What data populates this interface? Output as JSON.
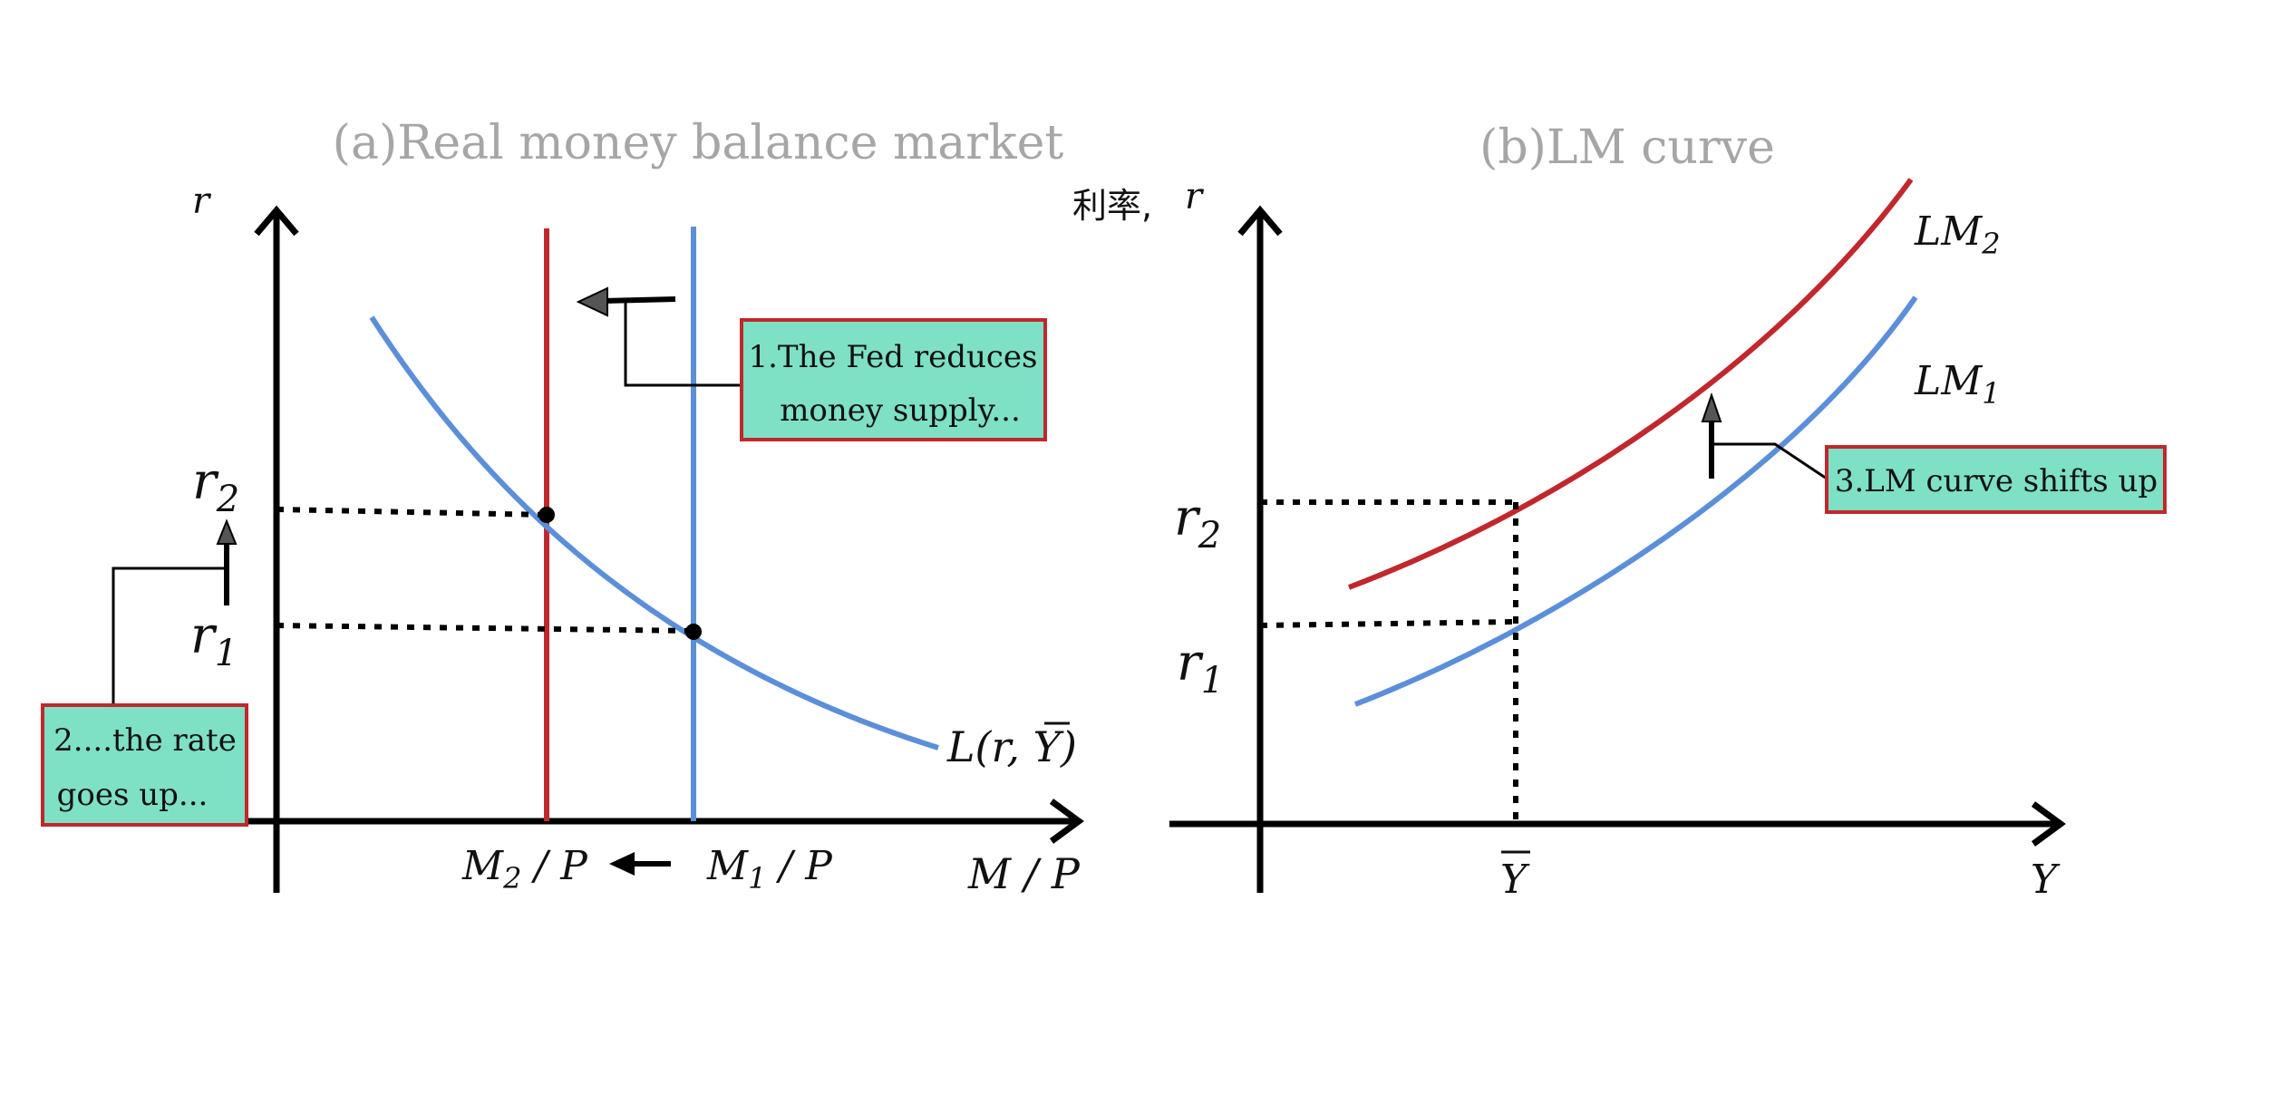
{
  "panel_a": {
    "title": "(a)Real money balance market",
    "y_axis_label": "r",
    "x_axis_label": "M / P",
    "r2_label_base": "r",
    "r2_label_sub": "2",
    "r1_label_base": "r",
    "r1_label_sub": "1",
    "m2_label_base": "M",
    "m2_label_sub": "2",
    "m2_label_rest": " / P",
    "m1_label_base": "M",
    "m1_label_sub": "1",
    "m1_label_rest": " / P",
    "demand_label": "L(r, Y)",
    "callout_1_line1": "1.The Fed reduces",
    "callout_1_line2": "money supply...",
    "callout_2_line1": "2....the rate",
    "callout_2_line2": "goes up..."
  },
  "panel_b": {
    "title": "(b)LM curve",
    "y_axis_label_cn": "利率,",
    "y_axis_label": "r",
    "x_axis_label": "Y",
    "ybar_label": "Y",
    "r2_label_base": "r",
    "r2_label_sub": "2",
    "r1_label_base": "r",
    "r1_label_sub": "1",
    "lm2_base": "LM",
    "lm2_sub": "2",
    "lm1_base": "LM",
    "lm1_sub": "1",
    "callout_3": "3.LM curve shifts up"
  },
  "colors": {
    "red": "#c0282d",
    "blue": "#5b8fd9",
    "box_fill": "#7ee0c4",
    "box_border": "#c0282d",
    "axis": "#000000",
    "title": "#a6a6a6"
  },
  "icons": [
    "arrow-left-icon",
    "arrow-up-icon"
  ]
}
